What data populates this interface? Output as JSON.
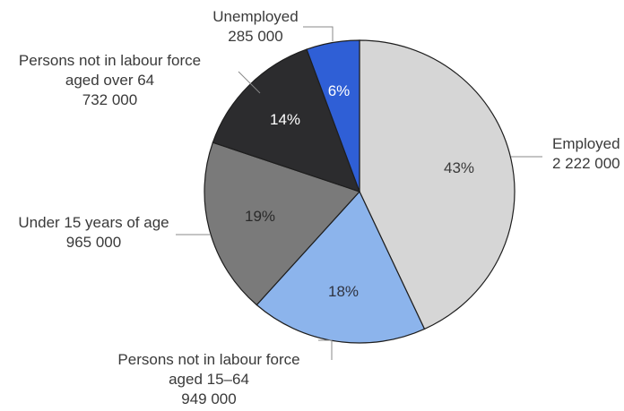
{
  "chart_data": {
    "type": "pie",
    "slices": [
      {
        "label": "Employed",
        "value": 2222000,
        "value_text": "2 222 000",
        "percent_text": "43%",
        "color": "#d6d6d6",
        "pct_color": "#3a3a3a"
      },
      {
        "label": "Persons not in labour force aged 15–64",
        "label_lines": [
          "Persons not in labour force",
          "aged 15–64"
        ],
        "value": 949000,
        "value_text": "949 000",
        "percent_text": "18%",
        "color": "#8cb4ec",
        "pct_color": "#2f3340"
      },
      {
        "label": "Under 15 years of age",
        "value": 965000,
        "value_text": "965 000",
        "percent_text": "19%",
        "color": "#7a7a7a",
        "pct_color": "#2a2a2a"
      },
      {
        "label": "Persons not in labour force aged over 64",
        "label_lines": [
          "Persons not in labour force",
          "aged over 64"
        ],
        "value": 732000,
        "value_text": "732 000",
        "percent_text": "14%",
        "color": "#2c2c2e",
        "pct_color": "#ffffff"
      },
      {
        "label": "Unemployed",
        "value": 285000,
        "value_text": "285 000",
        "percent_text": "6%",
        "color": "#2f5fd6",
        "pct_color": "#ffffff"
      }
    ],
    "start": "12 o'clock",
    "direction": "clockwise"
  }
}
